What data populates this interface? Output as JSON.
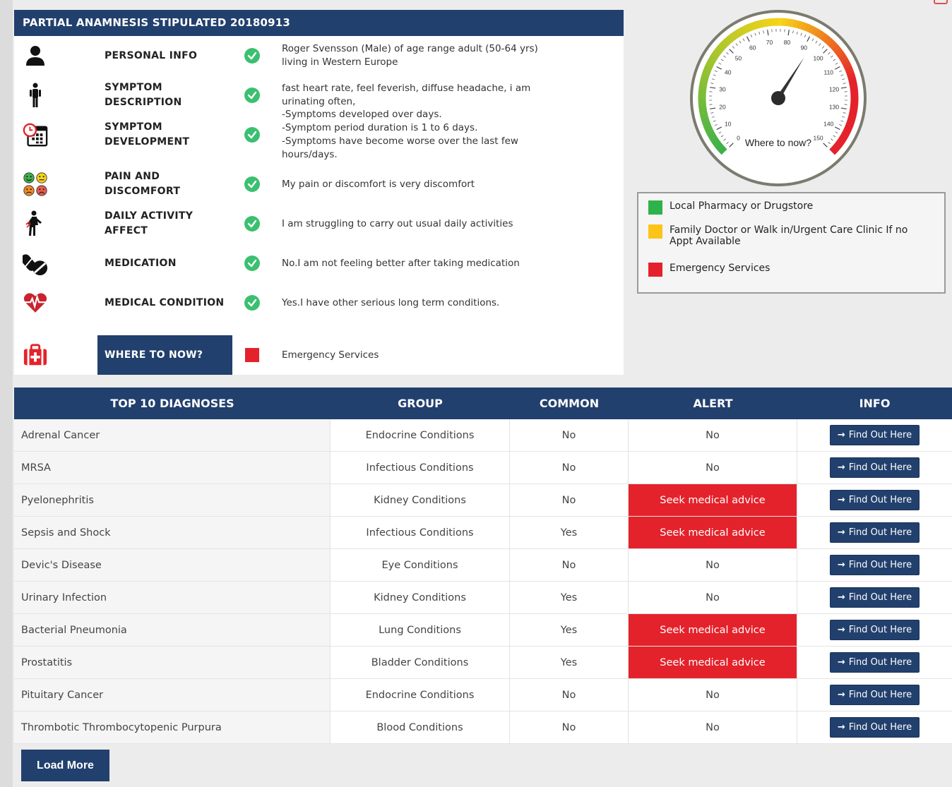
{
  "anamnesis": {
    "title": "PARTIAL ANAMNESIS STIPULATED 20180913",
    "rows": [
      {
        "icon": "person-icon",
        "label": "PERSONAL INFO",
        "status": "check",
        "answer": "Roger Svensson (Male) of age range adult (50-64 yrs) living in Western Europe"
      },
      {
        "icon": "standing-figure-icon",
        "label": "SYMPTOM DESCRIPTION",
        "status": "check",
        "answer": "fast heart rate, feel feverish, diffuse headache, i am urinating often,"
      },
      {
        "icon": "calendar-clock-icon",
        "label": "SYMPTOM DEVELOPMENT",
        "status": "check",
        "answer": "-Symptoms developed over days.\n-Symptom period duration is 1 to 6 days.\n-Symptoms have become worse over the last few hours/days."
      },
      {
        "icon": "pain-faces-icon",
        "label": "PAIN AND DISCOMFORT",
        "status": "check",
        "answer": "My pain or discomfort is very discomfort"
      },
      {
        "icon": "struggling-person-icon",
        "label": "DAILY ACTIVITY AFFECT",
        "status": "check",
        "answer": "I am struggling to carry out usual daily activities"
      },
      {
        "icon": "pills-icon",
        "label": "MEDICATION",
        "status": "check",
        "answer": "No.I am not feeling better after taking medication"
      },
      {
        "icon": "heartbeat-icon",
        "label": "MEDICAL CONDITION",
        "status": "check",
        "answer": "Yes.I have other serious long term conditions."
      },
      {
        "icon": "first-aid-kit-icon",
        "label": "WHERE TO NOW?",
        "status": "red",
        "answer": "Emergency Services"
      }
    ]
  },
  "gauge": {
    "caption": "Where to now?",
    "min": 0,
    "max": 150,
    "value": 93,
    "ticks": [
      "0",
      "10",
      "20",
      "30",
      "40",
      "50",
      "60",
      "70",
      "80",
      "90",
      "100",
      "110",
      "120",
      "130",
      "140",
      "150"
    ],
    "colors": {
      "green": "#3cb14a",
      "yellow": "#f7d417",
      "red": "#e4222b"
    }
  },
  "legend": [
    {
      "color": "#2db34a",
      "label": "Local Pharmacy or Drugstore"
    },
    {
      "color": "#fcc419",
      "label": "Family Doctor or Walk in/Urgent Care Clinic If no Appt Available"
    },
    {
      "color": "#e4222b",
      "label": "Emergency Services"
    }
  ],
  "table": {
    "headers": [
      "TOP 10 DIAGNOSES",
      "GROUP",
      "COMMON",
      "ALERT",
      "INFO"
    ],
    "button_label": "Find Out Here",
    "rows": [
      {
        "name": "Adrenal Cancer",
        "group": "Endocrine Conditions",
        "common": "No",
        "alert": "No"
      },
      {
        "name": "MRSA",
        "group": "Infectious Conditions",
        "common": "No",
        "alert": "No"
      },
      {
        "name": "Pyelonephritis",
        "group": "Kidney Conditions",
        "common": "No",
        "alert": "Seek medical advice"
      },
      {
        "name": "Sepsis and Shock",
        "group": "Infectious Conditions",
        "common": "Yes",
        "alert": "Seek medical advice"
      },
      {
        "name": "Devic's Disease",
        "group": "Eye Conditions",
        "common": "No",
        "alert": "No"
      },
      {
        "name": "Urinary Infection",
        "group": "Kidney Conditions",
        "common": "Yes",
        "alert": "No"
      },
      {
        "name": "Bacterial Pneumonia",
        "group": "Lung Conditions",
        "common": "Yes",
        "alert": "Seek medical advice"
      },
      {
        "name": "Prostatitis",
        "group": "Bladder Conditions",
        "common": "Yes",
        "alert": "Seek medical advice"
      },
      {
        "name": "Pituitary Cancer",
        "group": "Endocrine Conditions",
        "common": "No",
        "alert": "No"
      },
      {
        "name": "Thrombotic Thrombocytopenic Purpura",
        "group": "Blood Conditions",
        "common": "No",
        "alert": "No"
      }
    ]
  },
  "load_more_label": "Load More",
  "colors": {
    "navy": "#22406d",
    "alert_red": "#e4222b",
    "check_green": "#3ac070"
  }
}
